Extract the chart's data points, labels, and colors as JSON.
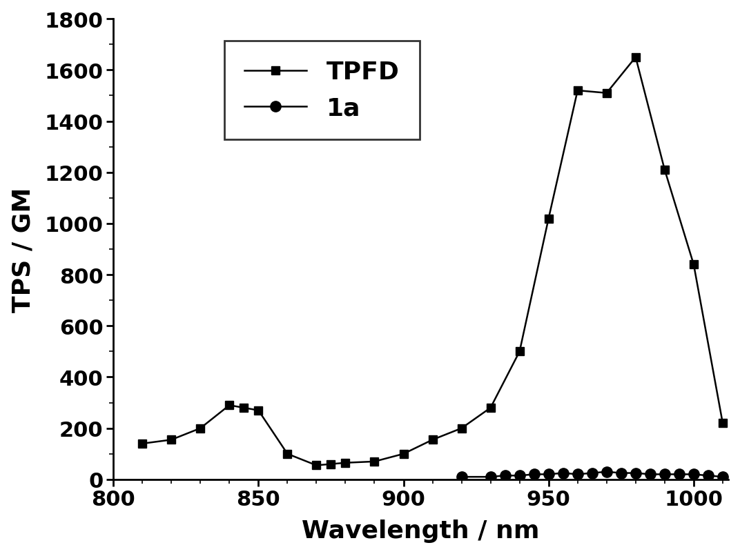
{
  "TPFD_x": [
    810,
    820,
    830,
    840,
    845,
    850,
    860,
    870,
    875,
    880,
    890,
    900,
    910,
    920,
    930,
    940,
    950,
    960,
    970,
    980,
    990,
    1000,
    1010
  ],
  "TPFD_y": [
    140,
    155,
    200,
    290,
    280,
    270,
    100,
    55,
    60,
    65,
    70,
    100,
    155,
    200,
    280,
    500,
    1020,
    1520,
    1510,
    1650,
    1210,
    840,
    220
  ],
  "1a_x": [
    920,
    930,
    935,
    940,
    945,
    950,
    955,
    960,
    965,
    970,
    975,
    980,
    985,
    990,
    995,
    1000,
    1005,
    1010
  ],
  "1a_y": [
    10,
    10,
    15,
    15,
    20,
    20,
    25,
    20,
    25,
    30,
    25,
    25,
    20,
    20,
    20,
    20,
    15,
    10
  ],
  "xlabel": "Wavelength / nm",
  "ylabel": "TPS / GM",
  "xlim": [
    800,
    1012
  ],
  "ylim": [
    0,
    1800
  ],
  "yticks": [
    0,
    200,
    400,
    600,
    800,
    1000,
    1200,
    1400,
    1600,
    1800
  ],
  "xticks": [
    800,
    850,
    900,
    950,
    1000
  ],
  "legend_labels": [
    "TPFD",
    "1a"
  ],
  "line_color": "#000000",
  "background_color": "#ffffff",
  "marker_TPFD": "s",
  "marker_1a": "o",
  "marker_size_TPFD": 9,
  "marker_size_1a": 11,
  "linewidth": 1.8,
  "axis_fontsize": 26,
  "tick_fontsize": 22,
  "legend_fontsize": 26
}
